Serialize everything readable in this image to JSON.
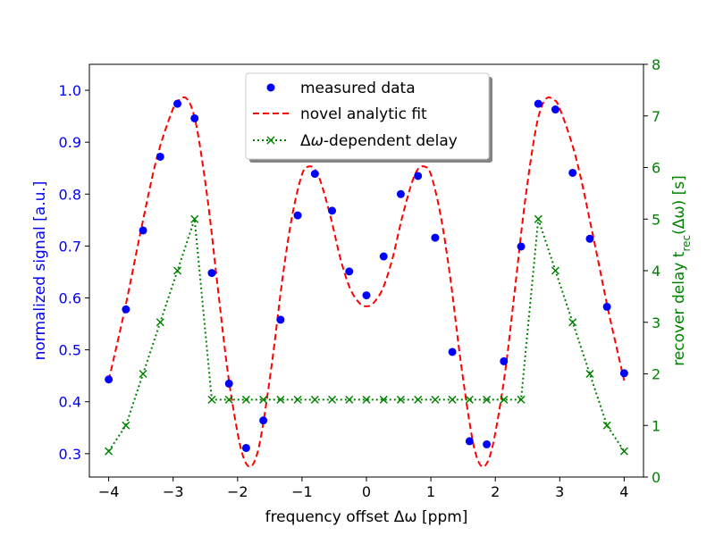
{
  "chart_data": {
    "type": "scatter",
    "xlabel": "frequency offset Δω [ppm]",
    "ylabel_left": "normalized signal [a.u.]",
    "ylabel_right_main": "recover delay t",
    "ylabel_right_sub": "rec",
    "ylabel_right_tail": "(Δω) [s]",
    "xlim": [
      -4.3,
      4.3
    ],
    "ylim_left": [
      0.255,
      1.05
    ],
    "ylim_right": [
      0,
      8
    ],
    "x_ticks": [
      -4,
      -3,
      -2,
      -1,
      0,
      1,
      2,
      3,
      4
    ],
    "y_ticks_left": [
      "0.3",
      "0.4",
      "0.5",
      "0.6",
      "0.7",
      "0.8",
      "0.9",
      "1.0"
    ],
    "y_ticks_right": [
      0,
      1,
      2,
      3,
      4,
      5,
      6,
      7,
      8
    ],
    "colors": {
      "measured": "#0000ff",
      "fit": "#ff0000",
      "delay": "#008000",
      "right_axis": "#008000",
      "left_axis": "#0000ff"
    },
    "legend": {
      "position": "top-center",
      "entries": [
        {
          "label": "measured data",
          "style": "blue-dot"
        },
        {
          "label": "novel analytic fit",
          "style": "red-dashed"
        },
        {
          "label_pre": "Δ",
          "label_italic": "ω",
          "label_post": "-dependent delay",
          "style": "green-dotted-x"
        }
      ]
    },
    "series": [
      {
        "name": "measured data",
        "axis": "left",
        "x": [
          -4.0,
          -3.733,
          -3.467,
          -3.2,
          -2.933,
          -2.667,
          -2.4,
          -2.133,
          -1.867,
          -1.6,
          -1.333,
          -1.067,
          -0.8,
          -0.533,
          -0.267,
          0.0,
          0.267,
          0.533,
          0.8,
          1.067,
          1.333,
          1.6,
          1.867,
          2.133,
          2.4,
          2.667,
          2.933,
          3.2,
          3.467,
          3.733,
          4.0
        ],
        "y": [
          0.443,
          0.578,
          0.73,
          0.872,
          0.974,
          0.946,
          0.648,
          0.435,
          0.311,
          0.364,
          0.558,
          0.759,
          0.839,
          0.768,
          0.651,
          0.605,
          0.68,
          0.8,
          0.835,
          0.716,
          0.496,
          0.324,
          0.318,
          0.478,
          0.699,
          0.974,
          0.963,
          0.841,
          0.714,
          0.583,
          0.455
        ]
      },
      {
        "name": "novel analytic fit",
        "axis": "left",
        "x": [
          -4.0,
          -3.75,
          -3.5,
          -3.25,
          -3.0,
          -2.9,
          -2.8,
          -2.7,
          -2.6,
          -2.45,
          -2.3,
          -2.15,
          -2.0,
          -1.9,
          -1.8,
          -1.7,
          -1.6,
          -1.45,
          -1.3,
          -1.15,
          -1.0,
          -0.9,
          -0.8,
          -0.7,
          -0.55,
          -0.4,
          -0.25,
          -0.1,
          0.0,
          0.1,
          0.25,
          0.4,
          0.55,
          0.7,
          0.8,
          0.9,
          1.0,
          1.15,
          1.3,
          1.45,
          1.6,
          1.7,
          1.8,
          1.9,
          2.0,
          2.15,
          2.3,
          2.45,
          2.6,
          2.7,
          2.8,
          2.9,
          3.0,
          3.25,
          3.5,
          3.75,
          4.0
        ],
        "y": [
          0.441,
          0.578,
          0.73,
          0.871,
          0.965,
          0.982,
          0.985,
          0.962,
          0.905,
          0.775,
          0.612,
          0.455,
          0.34,
          0.29,
          0.275,
          0.298,
          0.36,
          0.49,
          0.64,
          0.76,
          0.838,
          0.853,
          0.848,
          0.82,
          0.753,
          0.674,
          0.617,
          0.589,
          0.584,
          0.589,
          0.617,
          0.674,
          0.753,
          0.82,
          0.848,
          0.853,
          0.838,
          0.76,
          0.64,
          0.49,
          0.36,
          0.298,
          0.275,
          0.29,
          0.34,
          0.455,
          0.612,
          0.775,
          0.905,
          0.962,
          0.985,
          0.982,
          0.965,
          0.871,
          0.73,
          0.578,
          0.441
        ]
      },
      {
        "name": "Δω-dependent delay",
        "axis": "right",
        "x": [
          -4.0,
          -3.733,
          -3.467,
          -3.2,
          -2.933,
          -2.667,
          -2.4,
          -2.133,
          -1.867,
          -1.6,
          -1.333,
          -1.067,
          -0.8,
          -0.533,
          -0.267,
          0.0,
          0.267,
          0.533,
          0.8,
          1.067,
          1.333,
          1.6,
          1.867,
          2.133,
          2.4,
          2.667,
          2.933,
          3.2,
          3.467,
          3.733,
          4.0
        ],
        "y": [
          0.5,
          1.0,
          2.0,
          3.0,
          4.0,
          5.0,
          1.5,
          1.5,
          1.5,
          1.5,
          1.5,
          1.5,
          1.5,
          1.5,
          1.5,
          1.5,
          1.5,
          1.5,
          1.5,
          1.5,
          1.5,
          1.5,
          1.5,
          1.5,
          1.5,
          5.0,
          4.0,
          3.0,
          2.0,
          1.0,
          0.5
        ]
      }
    ]
  }
}
